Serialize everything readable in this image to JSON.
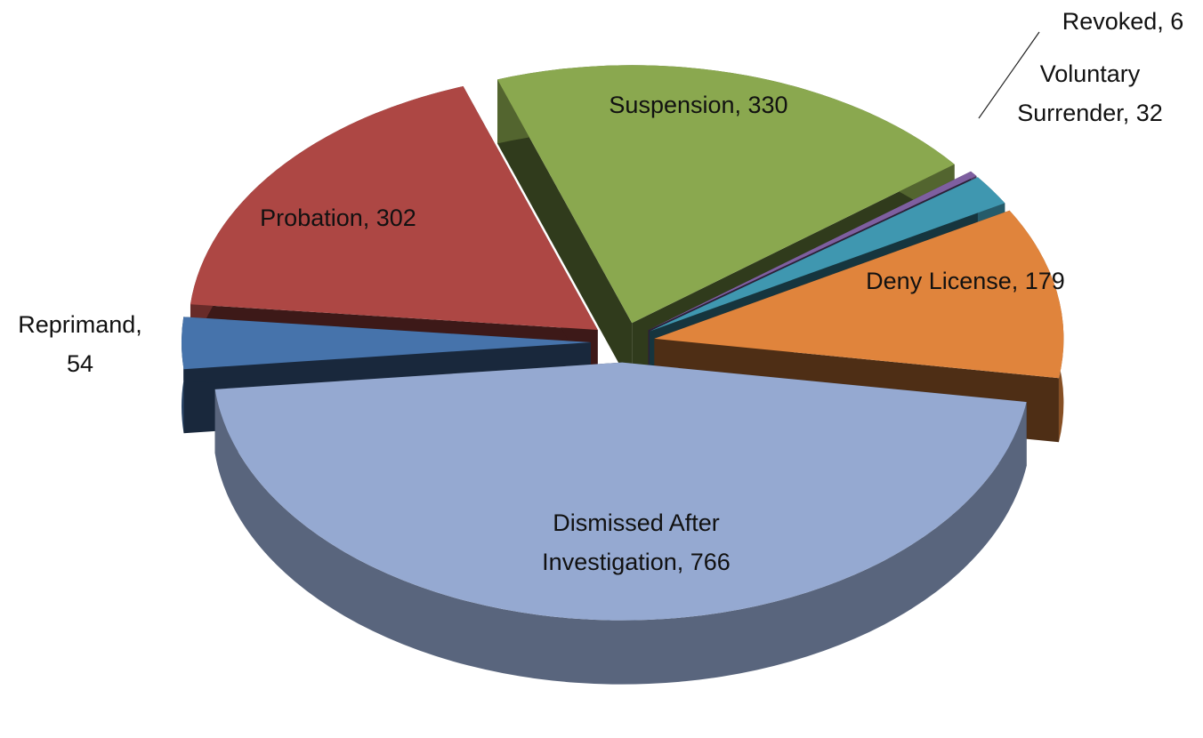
{
  "chart_data": {
    "type": "pie",
    "values": [
      6,
      32,
      179,
      766,
      54,
      302,
      330
    ],
    "value_labels": [
      [
        "Revoked, 6"
      ],
      [
        "Voluntary",
        "Surrender, 32"
      ],
      [
        "Deny License, 179"
      ],
      [
        "Dismissed After",
        "Investigation, 766"
      ],
      [
        "Reprimand,",
        "54"
      ],
      [
        "Probation, 302"
      ],
      [
        "Suspension, 330"
      ]
    ],
    "colors": [
      "#7e5fa0",
      "#3f97b0",
      "#e0843c",
      "#95a9d1",
      "#4673ab",
      "#ad4744",
      "#8aa84f"
    ]
  }
}
